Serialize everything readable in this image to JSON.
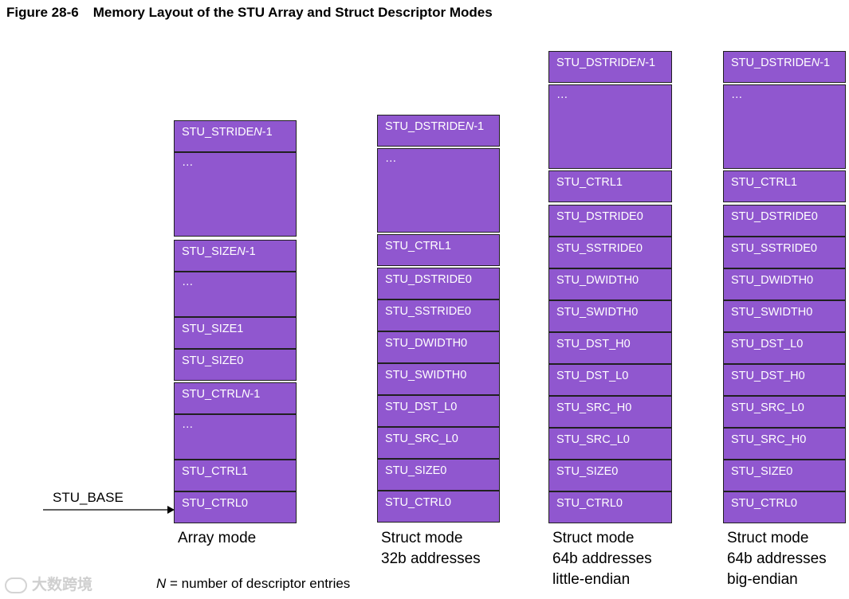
{
  "title": {
    "number": "Figure 28-6",
    "text": "Memory Layout of the STU Array and Struct Descriptor Modes"
  },
  "pointer_label": "STU_BASE",
  "footnote": {
    "variable": "N",
    "text": " = number of descriptor entries"
  },
  "watermark": "大数跨境",
  "colors": {
    "cell_fill": "#9057cf",
    "cell_border": "#202020",
    "cell_text": "#ffffff"
  },
  "columns": [
    {
      "caption": [
        "Array mode"
      ],
      "cells": [
        {
          "parts": [
            {
              "t": "STU_STRIDE"
            },
            {
              "t": "N",
              "i": true
            },
            {
              "t": "-1"
            }
          ]
        },
        {
          "parts": [
            {
              "t": "…"
            }
          ]
        },
        {
          "parts": [
            {
              "t": "STU_SIZE"
            },
            {
              "t": "N",
              "i": true
            },
            {
              "t": "-1"
            }
          ]
        },
        {
          "parts": [
            {
              "t": "…"
            }
          ]
        },
        {
          "parts": [
            {
              "t": "STU_SIZE1"
            }
          ]
        },
        {
          "parts": [
            {
              "t": "STU_SIZE0"
            }
          ]
        },
        {
          "parts": [
            {
              "t": "STU_CTRL"
            },
            {
              "t": "N",
              "i": true
            },
            {
              "t": "-1"
            }
          ]
        },
        {
          "parts": [
            {
              "t": "…"
            }
          ]
        },
        {
          "parts": [
            {
              "t": "STU_CTRL1"
            }
          ]
        },
        {
          "parts": [
            {
              "t": "STU_CTRL0"
            }
          ]
        }
      ]
    },
    {
      "caption": [
        "Struct mode",
        "32b addresses"
      ],
      "cells": [
        {
          "parts": [
            {
              "t": "STU_DSTRIDE"
            },
            {
              "t": "N",
              "i": true
            },
            {
              "t": "-1"
            }
          ]
        },
        {
          "parts": [
            {
              "t": "…"
            }
          ]
        },
        {
          "parts": [
            {
              "t": "STU_CTRL1"
            }
          ]
        },
        {
          "parts": [
            {
              "t": "STU_DSTRIDE0"
            }
          ]
        },
        {
          "parts": [
            {
              "t": "STU_SSTRIDE0"
            }
          ]
        },
        {
          "parts": [
            {
              "t": "STU_DWIDTH0"
            }
          ]
        },
        {
          "parts": [
            {
              "t": "STU_SWIDTH0"
            }
          ]
        },
        {
          "parts": [
            {
              "t": "STU_DST_L0"
            }
          ]
        },
        {
          "parts": [
            {
              "t": "STU_SRC_L0"
            }
          ]
        },
        {
          "parts": [
            {
              "t": "STU_SIZE0"
            }
          ]
        },
        {
          "parts": [
            {
              "t": "STU_CTRL0"
            }
          ]
        }
      ]
    },
    {
      "caption": [
        "Struct mode",
        "64b addresses",
        "little-endian"
      ],
      "cells": [
        {
          "parts": [
            {
              "t": "STU_DSTRIDE"
            },
            {
              "t": "N",
              "i": true
            },
            {
              "t": "-1"
            }
          ]
        },
        {
          "parts": [
            {
              "t": "…"
            }
          ]
        },
        {
          "parts": [
            {
              "t": "STU_CTRL1"
            }
          ]
        },
        {
          "parts": [
            {
              "t": "STU_DSTRIDE0"
            }
          ]
        },
        {
          "parts": [
            {
              "t": "STU_SSTRIDE0"
            }
          ]
        },
        {
          "parts": [
            {
              "t": "STU_DWIDTH0"
            }
          ]
        },
        {
          "parts": [
            {
              "t": "STU_SWIDTH0"
            }
          ]
        },
        {
          "parts": [
            {
              "t": "STU_DST_H0"
            }
          ]
        },
        {
          "parts": [
            {
              "t": "STU_DST_L0"
            }
          ]
        },
        {
          "parts": [
            {
              "t": "STU_SRC_H0"
            }
          ]
        },
        {
          "parts": [
            {
              "t": "STU_SRC_L0"
            }
          ]
        },
        {
          "parts": [
            {
              "t": "STU_SIZE0"
            }
          ]
        },
        {
          "parts": [
            {
              "t": "STU_CTRL0"
            }
          ]
        }
      ]
    },
    {
      "caption": [
        "Struct mode",
        "64b addresses",
        "big-endian"
      ],
      "cells": [
        {
          "parts": [
            {
              "t": "STU_DSTRIDE"
            },
            {
              "t": "N",
              "i": true
            },
            {
              "t": "-1"
            }
          ]
        },
        {
          "parts": [
            {
              "t": "…"
            }
          ]
        },
        {
          "parts": [
            {
              "t": "STU_CTRL1"
            }
          ]
        },
        {
          "parts": [
            {
              "t": "STU_DSTRIDE0"
            }
          ]
        },
        {
          "parts": [
            {
              "t": "STU_SSTRIDE0"
            }
          ]
        },
        {
          "parts": [
            {
              "t": "STU_DWIDTH0"
            }
          ]
        },
        {
          "parts": [
            {
              "t": "STU_SWIDTH0"
            }
          ]
        },
        {
          "parts": [
            {
              "t": "STU_DST_L0"
            }
          ]
        },
        {
          "parts": [
            {
              "t": "STU_DST_H0"
            }
          ]
        },
        {
          "parts": [
            {
              "t": "STU_SRC_L0"
            }
          ]
        },
        {
          "parts": [
            {
              "t": "STU_SRC_H0"
            }
          ]
        },
        {
          "parts": [
            {
              "t": "STU_SIZE0"
            }
          ]
        },
        {
          "parts": [
            {
              "t": "STU_CTRL0"
            }
          ]
        }
      ]
    }
  ]
}
